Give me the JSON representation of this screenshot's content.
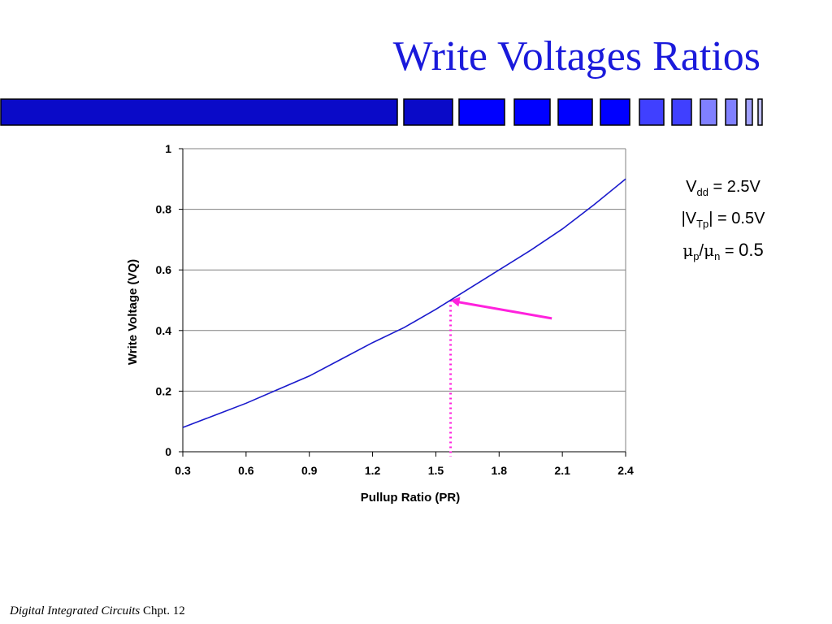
{
  "slide": {
    "title": "Write Voltages Ratios",
    "footer": {
      "course": "Digital Integrated Circuits",
      "chapter": "Chpt. 12"
    }
  },
  "colors": {
    "title": "#1a1adb",
    "curve": "#1a1acc",
    "annotation": "#ff22dd",
    "grid": "#808080",
    "bar_dark": "#0a0ac8",
    "bar_bright": "#0000ff",
    "bar_light": "#8080ff"
  },
  "params": {
    "vdd": {
      "sym": "V",
      "sub": "dd",
      "value": " = 2.5V"
    },
    "vtp": {
      "prefix": "|V",
      "sub": "Tp",
      "value": "| = 0.5V"
    },
    "mu": {
      "mu_p": "μ",
      "sub_p": "p",
      "slash": "/",
      "mu_n": "μ",
      "sub_n": "n",
      "eq": " = ",
      "value": "0.5"
    }
  },
  "chart_data": {
    "type": "line",
    "title": "",
    "xlabel": "Pullup Ratio (PR)",
    "ylabel": "Write Voltage (VQ)",
    "xlim": [
      0.3,
      2.4
    ],
    "ylim": [
      0,
      1
    ],
    "xticks": [
      "0.3",
      "0.6",
      "0.9",
      "1.2",
      "1.5",
      "1.8",
      "2.1",
      "2.4"
    ],
    "yticks": [
      "0",
      "0.2",
      "0.4",
      "0.6",
      "0.8",
      "1"
    ],
    "grid": "horizontal",
    "series": [
      {
        "x": [
          0.3,
          0.45,
          0.6,
          0.75,
          0.9,
          1.05,
          1.2,
          1.35,
          1.5,
          1.65,
          1.8,
          1.95,
          2.1,
          2.25,
          2.4
        ],
        "y": [
          0.08,
          0.12,
          0.16,
          0.205,
          0.25,
          0.305,
          0.36,
          0.41,
          0.47,
          0.535,
          0.6,
          0.665,
          0.735,
          0.815,
          0.9
        ]
      }
    ],
    "annotations": {
      "marker_x": 1.57,
      "marker_y": 0.5,
      "arrow_from": [
        2.05,
        0.44
      ]
    }
  }
}
